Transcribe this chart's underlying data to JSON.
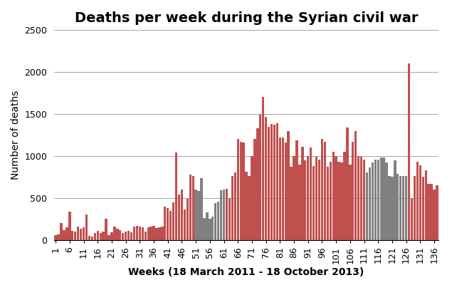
{
  "title": "Deaths per week during the Syrian civil war",
  "xlabel": "Weeks (18 March 2011 - 18 October 2013)",
  "ylabel": "Number of deaths",
  "ylim": [
    0,
    2500
  ],
  "yticks": [
    0,
    500,
    1000,
    1500,
    2000,
    2500
  ],
  "bar_color_red": "#c0504d",
  "bar_color_gray": "#808080",
  "background_color": "#ffffff",
  "values": [
    60,
    70,
    200,
    120,
    150,
    340,
    110,
    100,
    160,
    130,
    150,
    300,
    50,
    40,
    80,
    110,
    80,
    100,
    250,
    60,
    90,
    160,
    130,
    120,
    80,
    100,
    110,
    90,
    160,
    170,
    160,
    150,
    100,
    150,
    160,
    170,
    140,
    150,
    160,
    400,
    380,
    350,
    450,
    1040,
    540,
    600,
    360,
    490,
    780,
    760,
    600,
    580,
    740,
    260,
    330,
    250,
    280,
    440,
    460,
    590,
    600,
    610,
    500,
    760,
    800,
    1200,
    1170,
    1160,
    810,
    760,
    1000,
    1200,
    1330,
    1490,
    1700,
    1470,
    1350,
    1380,
    1370,
    1390,
    1220,
    1220,
    1160,
    1300,
    870,
    1000,
    1190,
    900,
    1110,
    950,
    1000,
    1100,
    880,
    990,
    960,
    1200,
    1170,
    870,
    930,
    1050,
    1000,
    930,
    920,
    1050,
    1340,
    900,
    1170,
    1300,
    1000,
    990,
    960,
    800,
    860,
    920,
    960,
    960,
    980,
    980,
    920,
    760,
    750,
    950,
    790,
    760,
    760,
    760,
    2100,
    500,
    760,
    930,
    890,
    750,
    830,
    670,
    670,
    600,
    650
  ],
  "gray_weeks": [
    51,
    52,
    53,
    54,
    55,
    56,
    57,
    58,
    59,
    60,
    61,
    112,
    113,
    114,
    115,
    116,
    117,
    118,
    119,
    120,
    121,
    122,
    123,
    124,
    125,
    126
  ],
  "xtick_positions": [
    1,
    6,
    11,
    16,
    21,
    26,
    31,
    36,
    41,
    46,
    51,
    56,
    61,
    66,
    71,
    76,
    81,
    86,
    91,
    96,
    101,
    106,
    111,
    116,
    121,
    126,
    131,
    136
  ],
  "title_fontsize": 14,
  "axis_fontsize": 10,
  "tick_fontsize": 9
}
